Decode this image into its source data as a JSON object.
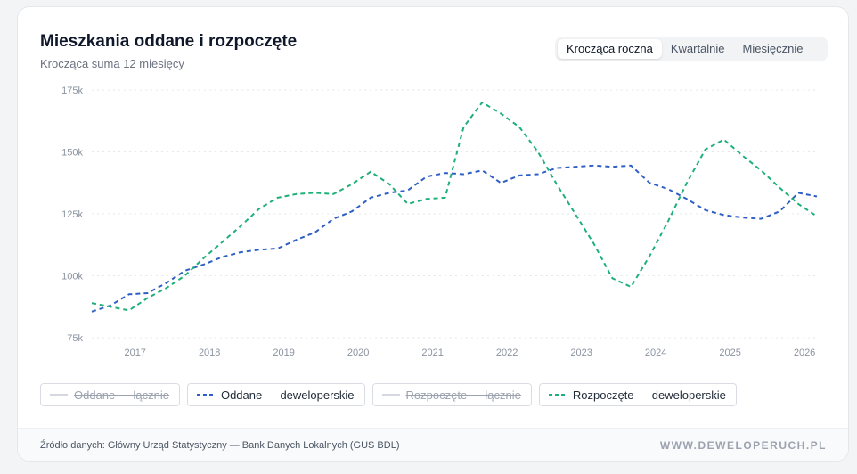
{
  "header": {
    "title": "Mieszkania oddane i rozpoczęte",
    "subtitle": "Krocząca suma 12 miesięcy"
  },
  "toggle": {
    "options": [
      "Krocząca roczna",
      "Kwartalnie",
      "Miesięcznie"
    ],
    "selected": 0
  },
  "legend": [
    {
      "label": "Oddane — łącznie",
      "enabled": false
    },
    {
      "label": "Oddane — deweloperskie",
      "enabled": true
    },
    {
      "label": "Rozpoczęte — łącznie",
      "enabled": false
    },
    {
      "label": "Rozpoczęte — deweloperskie",
      "enabled": true
    }
  ],
  "footer": {
    "source": "Źródło danych: Główny Urząd Statystyczny — Bank Danych Lokalnych (GUS BDL)",
    "brand": "WWW.DEWELOPERUCH.PL"
  },
  "colors": {
    "oddane": "#2f5fc4",
    "rozpoczete": "#1fb07a",
    "grid": "#e5e7eb",
    "axis_text": "#8a93a0"
  },
  "chart_data": {
    "type": "line",
    "yticks": [
      "75k",
      "100k",
      "125k",
      "150k",
      "175k"
    ],
    "ylim": [
      75000,
      175000
    ],
    "xticks": [
      "2017",
      "2018",
      "2019",
      "2020",
      "2021",
      "2022",
      "2023",
      "2024",
      "2025",
      "2026"
    ],
    "xlim": [
      "2016-06",
      "2026-03"
    ],
    "grid": "horizontal dotted",
    "series": [
      {
        "name": "Oddane — deweloperskie",
        "color": "#2f5fc4",
        "dash": "dashed",
        "points": [
          [
            "2016-06",
            85500
          ],
          [
            "2016-09",
            88000
          ],
          [
            "2016-12",
            92500
          ],
          [
            "2017-03",
            93000
          ],
          [
            "2017-06",
            97000
          ],
          [
            "2017-09",
            102000
          ],
          [
            "2017-12",
            104500
          ],
          [
            "2018-03",
            107500
          ],
          [
            "2018-06",
            109500
          ],
          [
            "2018-09",
            110500
          ],
          [
            "2018-12",
            111000
          ],
          [
            "2019-03",
            114500
          ],
          [
            "2019-06",
            117500
          ],
          [
            "2019-09",
            123000
          ],
          [
            "2019-12",
            126000
          ],
          [
            "2020-03",
            131500
          ],
          [
            "2020-06",
            133500
          ],
          [
            "2020-09",
            134500
          ],
          [
            "2020-12",
            140000
          ],
          [
            "2021-03",
            141500
          ],
          [
            "2021-06",
            141000
          ],
          [
            "2021-09",
            142500
          ],
          [
            "2021-12",
            137500
          ],
          [
            "2022-03",
            140500
          ],
          [
            "2022-06",
            141000
          ],
          [
            "2022-09",
            143500
          ],
          [
            "2022-12",
            144000
          ],
          [
            "2023-03",
            144500
          ],
          [
            "2023-06",
            144000
          ],
          [
            "2023-09",
            144500
          ],
          [
            "2023-12",
            137500
          ],
          [
            "2024-03",
            135000
          ],
          [
            "2024-06",
            131000
          ],
          [
            "2024-09",
            126500
          ],
          [
            "2024-12",
            124500
          ],
          [
            "2025-03",
            123500
          ],
          [
            "2025-06",
            123000
          ],
          [
            "2025-09",
            126000
          ],
          [
            "2025-12",
            133500
          ],
          [
            "2026-03",
            132000
          ]
        ]
      },
      {
        "name": "Rozpoczęte — deweloperskie",
        "color": "#1fb07a",
        "dash": "dashed",
        "points": [
          [
            "2016-06",
            89000
          ],
          [
            "2016-09",
            87500
          ],
          [
            "2016-12",
            86000
          ],
          [
            "2017-03",
            91000
          ],
          [
            "2017-06",
            95000
          ],
          [
            "2017-09",
            100000
          ],
          [
            "2017-12",
            107000
          ],
          [
            "2018-03",
            113500
          ],
          [
            "2018-06",
            120000
          ],
          [
            "2018-09",
            127000
          ],
          [
            "2018-12",
            131500
          ],
          [
            "2019-03",
            133000
          ],
          [
            "2019-06",
            133500
          ],
          [
            "2019-09",
            133000
          ],
          [
            "2019-12",
            137000
          ],
          [
            "2020-03",
            142000
          ],
          [
            "2020-06",
            137000
          ],
          [
            "2020-09",
            129000
          ],
          [
            "2020-12",
            131000
          ],
          [
            "2021-03",
            131500
          ],
          [
            "2021-06",
            160000
          ],
          [
            "2021-09",
            170000
          ],
          [
            "2021-12",
            165500
          ],
          [
            "2022-03",
            160000
          ],
          [
            "2022-06",
            150000
          ],
          [
            "2022-09",
            137000
          ],
          [
            "2022-12",
            125000
          ],
          [
            "2023-03",
            113000
          ],
          [
            "2023-06",
            99000
          ],
          [
            "2023-09",
            95500
          ],
          [
            "2023-12",
            108000
          ],
          [
            "2024-03",
            122000
          ],
          [
            "2024-06",
            137500
          ],
          [
            "2024-09",
            151000
          ],
          [
            "2024-12",
            155000
          ],
          [
            "2025-03",
            148500
          ],
          [
            "2025-06",
            142500
          ],
          [
            "2025-09",
            135500
          ],
          [
            "2025-12",
            129000
          ],
          [
            "2026-03",
            124000
          ]
        ]
      }
    ]
  }
}
